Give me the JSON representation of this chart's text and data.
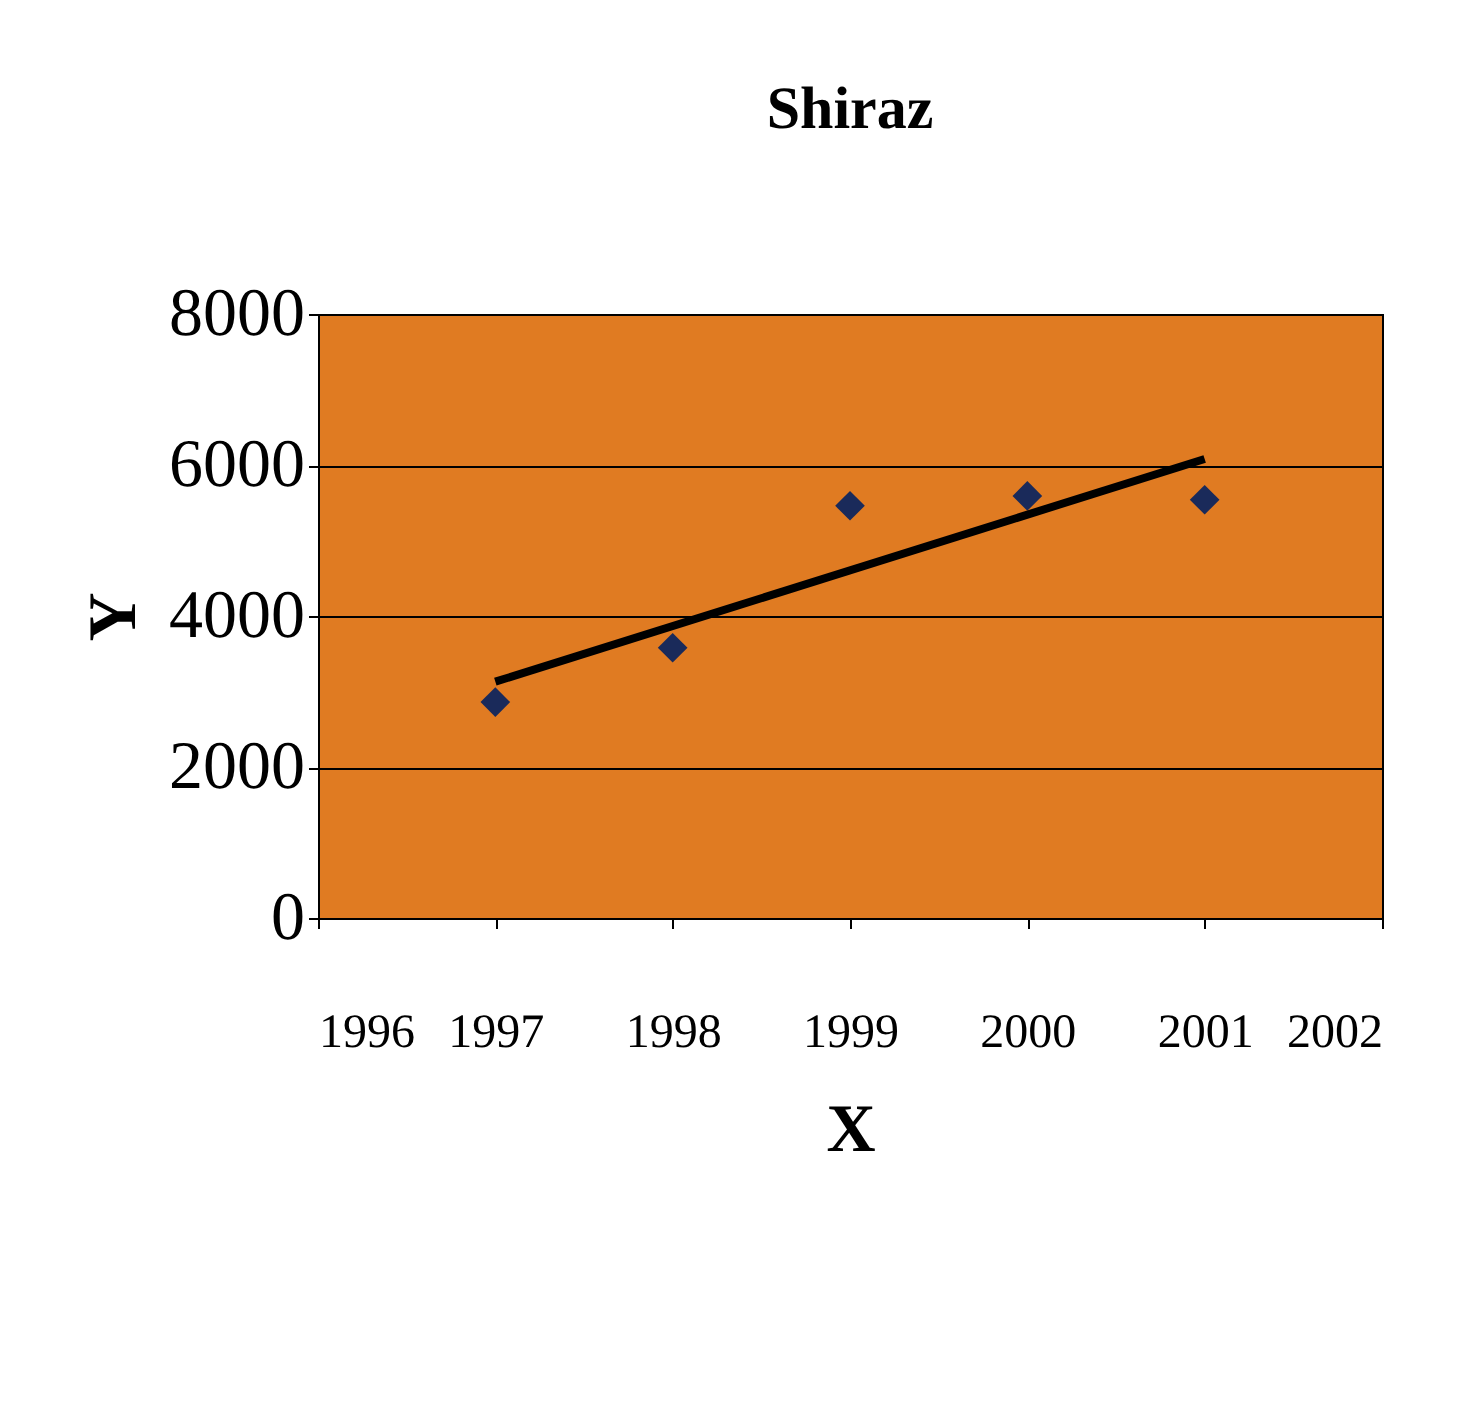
{
  "chart_data": {
    "type": "scatter",
    "title": "Shiraz",
    "xlabel": "X",
    "ylabel": "Y",
    "x": [
      1997,
      1998,
      1999,
      2000,
      2001
    ],
    "series": [
      {
        "type": "scatter",
        "color": "#1a2a5a",
        "marker": "diamond",
        "values": [
          2860,
          3580,
          5460,
          5590,
          5540
        ]
      },
      {
        "type": "line",
        "color": "#000000",
        "x": [
          1997,
          2001
        ],
        "values": [
          3130,
          6080
        ],
        "marker": "none",
        "line_style": "solid"
      }
    ],
    "xlim": [
      1996,
      2002
    ],
    "xticks": [
      1996,
      1997,
      1998,
      1999,
      2000,
      2001,
      2002
    ],
    "ylim": [
      0,
      8000
    ],
    "yticks": [
      0,
      2000,
      4000,
      6000,
      8000
    ],
    "grid": "y"
  }
}
